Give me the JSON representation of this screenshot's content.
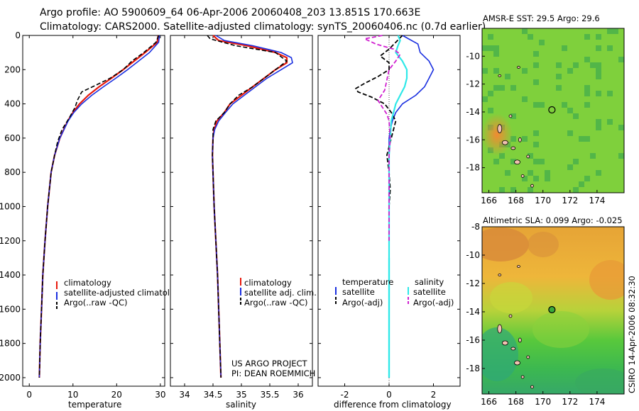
{
  "header": {
    "line1": "Argo profile: AO 5900609_64 06-Apr-2006 20060408_203 13.851S 170.663E",
    "line2": "Climatology: CARS2000. Satellite-adjusted climatology: synTS_20060406.nc (0.7d earlier)"
  },
  "credit": {
    "line1": "US ARGO PROJECT",
    "line2": "PI: DEAN ROEMMICH"
  },
  "timestamp": "CSIRO 14-Apr-2006 08:32:30",
  "colors": {
    "climatology": "#e8180c",
    "satellite": "#1a2fe0",
    "argo": "#000000",
    "satellite_salinity": "#2fe8e8",
    "argo_salinity": "#d020d0",
    "zero_line": "#2fe8e8"
  },
  "chart_data": [
    {
      "id": "temperature",
      "type": "line",
      "xlabel": "temperature",
      "ylabel": "",
      "xlim": [
        -1.5,
        31
      ],
      "ylim": [
        2050,
        0
      ],
      "xticks": [
        0,
        10,
        20,
        30
      ],
      "yticks": [
        0,
        200,
        400,
        600,
        800,
        1000,
        1200,
        1400,
        1600,
        1800,
        2000
      ],
      "legend": [
        "climatology",
        "satellite-adjusted climatology",
        "Argo(..raw -QC)"
      ],
      "series": [
        {
          "name": "climatology",
          "depth": [
            0,
            40,
            100,
            150,
            200,
            250,
            300,
            350,
            400,
            450,
            500,
            600,
            700,
            800,
            1000,
            1200,
            1400,
            1600,
            1800,
            2000
          ],
          "values": [
            29.5,
            29.3,
            26.5,
            24.0,
            21.5,
            18.8,
            16.0,
            13.5,
            11.5,
            10.0,
            8.8,
            7.0,
            5.8,
            5.0,
            4.2,
            3.6,
            3.1,
            2.8,
            2.5,
            2.3
          ]
        },
        {
          "name": "satellite",
          "depth": [
            0,
            40,
            100,
            150,
            200,
            250,
            300,
            350,
            400,
            450,
            500,
            600,
            700,
            800,
            1000,
            1200,
            1400,
            1600,
            1800,
            2000
          ],
          "values": [
            29.8,
            29.6,
            27.5,
            25.0,
            22.5,
            19.8,
            17.0,
            14.3,
            12.0,
            10.2,
            8.9,
            7.0,
            5.8,
            5.0,
            4.2,
            3.6,
            3.1,
            2.8,
            2.5,
            2.3
          ]
        },
        {
          "name": "argo",
          "depth": [
            0,
            40,
            100,
            150,
            200,
            250,
            300,
            330,
            380,
            420,
            480,
            550,
            620,
            700,
            800,
            1000,
            1200,
            1400,
            1600,
            1800,
            2000
          ],
          "values": [
            29.6,
            29.0,
            26.2,
            23.5,
            21.5,
            18.5,
            14.5,
            12.0,
            11.0,
            10.5,
            9.2,
            7.5,
            6.5,
            5.8,
            5.0,
            4.2,
            3.6,
            3.1,
            2.8,
            2.5,
            2.3
          ]
        }
      ]
    },
    {
      "id": "salinity",
      "type": "line",
      "xlabel": "salinity",
      "ylabel": "",
      "xlim": [
        33.75,
        36.25
      ],
      "ylim": [
        2050,
        0
      ],
      "xticks": [
        34,
        34.5,
        35,
        35.5,
        36
      ],
      "legend": [
        "climatology",
        "satellite adj. clim.",
        "Argo(..raw -QC)"
      ],
      "series": [
        {
          "name": "climatology",
          "depth": [
            0,
            30,
            60,
            100,
            130,
            160,
            200,
            250,
            300,
            350,
            400,
            450,
            500,
            550,
            600,
            700,
            800,
            1000,
            1200,
            1400,
            1600,
            1800,
            2000
          ],
          "values": [
            34.5,
            34.6,
            35.1,
            35.6,
            35.8,
            35.8,
            35.6,
            35.4,
            35.2,
            35.0,
            34.8,
            34.7,
            34.57,
            34.52,
            34.5,
            34.49,
            34.5,
            34.52,
            34.55,
            34.58,
            34.6,
            34.62,
            34.64
          ]
        },
        {
          "name": "satellite",
          "depth": [
            0,
            30,
            60,
            100,
            130,
            160,
            200,
            250,
            300,
            350,
            400,
            450,
            500,
            550,
            600,
            700,
            800,
            1000,
            1200,
            1400,
            1600,
            1800,
            2000
          ],
          "values": [
            34.55,
            34.7,
            35.2,
            35.7,
            35.88,
            35.9,
            35.7,
            35.45,
            35.25,
            35.05,
            34.85,
            34.72,
            34.6,
            34.53,
            34.5,
            34.49,
            34.5,
            34.52,
            34.55,
            34.58,
            34.6,
            34.62,
            34.64
          ]
        },
        {
          "name": "argo",
          "depth": [
            0,
            20,
            60,
            100,
            150,
            200,
            250,
            300,
            350,
            400,
            450,
            500,
            550,
            600,
            700,
            800,
            1000,
            1200,
            1400,
            1600,
            1800,
            2000
          ],
          "values": [
            34.4,
            34.45,
            34.9,
            35.6,
            35.8,
            35.6,
            35.4,
            35.2,
            34.95,
            34.8,
            34.7,
            34.55,
            34.5,
            34.5,
            34.49,
            34.5,
            34.52,
            34.55,
            34.58,
            34.6,
            34.62,
            34.64
          ]
        }
      ]
    },
    {
      "id": "difference",
      "type": "line",
      "xlabel": "difference from climatology",
      "ylabel": "",
      "xlim": [
        -3.2,
        3.2
      ],
      "ylim": [
        2050,
        0
      ],
      "xticks": [
        -2,
        0,
        2
      ],
      "legend_temperature_title": "temperature",
      "legend_salinity_title": "salinity",
      "legend_temperature": [
        "satellite",
        "Argo(-adj)"
      ],
      "legend_salinity": [
        "satellite",
        "Argo(-adj)"
      ],
      "series": [
        {
          "name": "temperature satellite",
          "depth": [
            0,
            50,
            100,
            150,
            200,
            250,
            300,
            350,
            400,
            450,
            500,
            550,
            600,
            700,
            800,
            1000,
            1200,
            1400,
            1600,
            1800,
            2000
          ],
          "values": [
            0.6,
            1.3,
            1.4,
            1.8,
            2.0,
            1.8,
            1.6,
            1.2,
            0.6,
            0.3,
            0.15,
            0.05,
            0.0,
            0.0,
            0.0,
            0.0,
            0.0,
            0.0,
            0.0,
            0.0,
            0.0
          ]
        },
        {
          "name": "temperature argo",
          "depth": [
            0,
            40,
            80,
            120,
            160,
            200,
            240,
            280,
            310,
            330,
            360,
            400,
            450,
            500,
            600,
            700,
            800,
            900,
            1000,
            1100,
            1200,
            1300
          ],
          "values": [
            0.6,
            0.3,
            0.0,
            -0.4,
            0.0,
            0.0,
            -0.5,
            -1.1,
            -1.5,
            -1.4,
            -0.8,
            -0.2,
            0.1,
            0.3,
            0.1,
            -0.1,
            0.0,
            0.05,
            0.0,
            0.0,
            0.0,
            0.0
          ]
        },
        {
          "name": "salinity satellite",
          "depth": [
            0,
            30,
            60,
            100,
            150,
            200,
            250,
            300,
            350,
            400,
            450,
            500,
            600,
            700,
            800,
            1000,
            1200,
            1400,
            1600,
            1800,
            2000
          ],
          "values": [
            0.4,
            0.5,
            0.4,
            0.3,
            0.6,
            0.8,
            0.8,
            0.7,
            0.5,
            0.3,
            0.2,
            0.1,
            0.05,
            0.0,
            0.0,
            0.0,
            0.0,
            0.0,
            0.0,
            0.0,
            0.0
          ]
        },
        {
          "name": "salinity argo",
          "depth": [
            0,
            20,
            50,
            80,
            110,
            150,
            200,
            260,
            320,
            380,
            420,
            460,
            500,
            600,
            700,
            800,
            1000,
            1200
          ],
          "values": [
            -0.3,
            -1.1,
            -0.6,
            0.2,
            0.5,
            0.3,
            0.0,
            -0.1,
            -0.2,
            -0.5,
            -0.3,
            -0.1,
            0.0,
            0.05,
            0.0,
            0.0,
            0.0,
            0.0
          ]
        }
      ]
    },
    {
      "id": "sst-map",
      "type": "heatmap",
      "title": "AMSR-E SST: 29.5 Argo: 29.6",
      "xlim": [
        165.5,
        176.0
      ],
      "ylim": [
        -19.8,
        -8.0
      ],
      "xticks": [
        166,
        168,
        170,
        172,
        174
      ],
      "yticks": [
        -10,
        -12,
        -14,
        -16,
        -18
      ],
      "marker": {
        "lon": 170.663,
        "lat": -13.851
      }
    },
    {
      "id": "sla-map",
      "type": "heatmap",
      "title": "Altimetric SLA: 0.099 Argo: -0.025",
      "xlim": [
        165.5,
        176.0
      ],
      "ylim": [
        -19.8,
        -8.0
      ],
      "xticks": [
        166,
        168,
        170,
        172,
        174
      ],
      "yticks": [
        -8,
        -10,
        -12,
        -14,
        -16,
        -18
      ],
      "marker": {
        "lon": 170.663,
        "lat": -13.851
      }
    }
  ]
}
